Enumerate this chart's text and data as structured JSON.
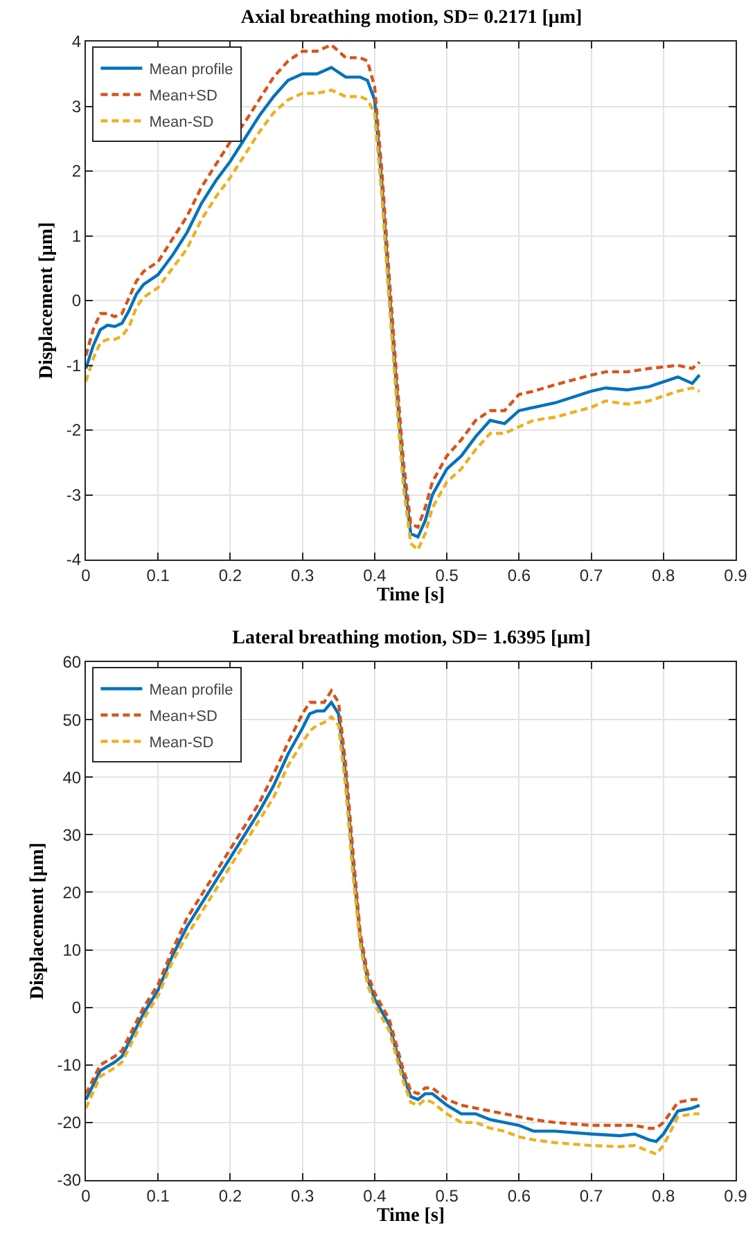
{
  "chart_data": [
    {
      "type": "line",
      "title": "Axial breathing motion, SD= 0.2171 [μm]",
      "xlabel": "Time [s]",
      "ylabel": "Displacement [μm]",
      "x": [
        0,
        0.01,
        0.02,
        0.03,
        0.04,
        0.05,
        0.06,
        0.07,
        0.08,
        0.1,
        0.12,
        0.14,
        0.16,
        0.18,
        0.2,
        0.22,
        0.24,
        0.26,
        0.28,
        0.3,
        0.32,
        0.34,
        0.36,
        0.38,
        0.39,
        0.4,
        0.41,
        0.42,
        0.43,
        0.44,
        0.45,
        0.46,
        0.47,
        0.48,
        0.5,
        0.52,
        0.54,
        0.56,
        0.58,
        0.6,
        0.62,
        0.65,
        0.7,
        0.72,
        0.75,
        0.78,
        0.82,
        0.84,
        0.85
      ],
      "series": [
        {
          "name": "Mean profile",
          "color": "#0072bd",
          "line_style": "solid",
          "values": [
            -1.05,
            -0.7,
            -0.45,
            -0.38,
            -0.4,
            -0.35,
            -0.15,
            0.1,
            0.25,
            0.4,
            0.7,
            1.05,
            1.5,
            1.85,
            2.15,
            2.5,
            2.85,
            3.15,
            3.4,
            3.5,
            3.5,
            3.6,
            3.45,
            3.45,
            3.4,
            3.1,
            1.8,
            0.2,
            -1.3,
            -2.7,
            -3.6,
            -3.65,
            -3.4,
            -3.0,
            -2.6,
            -2.4,
            -2.1,
            -1.85,
            -1.9,
            -1.7,
            -1.65,
            -1.58,
            -1.4,
            -1.35,
            -1.38,
            -1.33,
            -1.18,
            -1.28,
            -1.15
          ]
        },
        {
          "name": "Mean+SD",
          "color": "#d95319",
          "line_style": "dashed",
          "values": [
            -0.85,
            -0.45,
            -0.2,
            -0.2,
            -0.25,
            -0.2,
            0.05,
            0.3,
            0.45,
            0.6,
            0.95,
            1.3,
            1.75,
            2.1,
            2.45,
            2.75,
            3.1,
            3.45,
            3.7,
            3.85,
            3.85,
            3.95,
            3.75,
            3.75,
            3.7,
            3.3,
            2.0,
            0.4,
            -1.1,
            -2.5,
            -3.45,
            -3.5,
            -3.2,
            -2.8,
            -2.4,
            -2.15,
            -1.85,
            -1.7,
            -1.7,
            -1.45,
            -1.4,
            -1.3,
            -1.15,
            -1.1,
            -1.1,
            -1.05,
            -1.0,
            -1.05,
            -0.95
          ]
        },
        {
          "name": "Mean-SD",
          "color": "#edb120",
          "line_style": "dashed",
          "values": [
            -1.25,
            -0.9,
            -0.65,
            -0.6,
            -0.6,
            -0.55,
            -0.4,
            -0.1,
            0.05,
            0.2,
            0.5,
            0.8,
            1.25,
            1.6,
            1.9,
            2.25,
            2.6,
            2.9,
            3.1,
            3.2,
            3.2,
            3.25,
            3.15,
            3.15,
            3.1,
            2.9,
            1.6,
            0.0,
            -1.5,
            -2.9,
            -3.75,
            -3.85,
            -3.6,
            -3.2,
            -2.8,
            -2.6,
            -2.3,
            -2.05,
            -2.05,
            -1.95,
            -1.85,
            -1.8,
            -1.65,
            -1.55,
            -1.6,
            -1.55,
            -1.4,
            -1.35,
            -1.4
          ]
        }
      ],
      "xlim": [
        0,
        0.9
      ],
      "xticks": [
        0,
        0.1,
        0.2,
        0.3,
        0.4,
        0.5,
        0.6,
        0.7,
        0.8,
        0.9
      ],
      "ylim": [
        -4,
        4
      ],
      "yticks": [
        -4,
        -3,
        -2,
        -1,
        0,
        1,
        2,
        3,
        4
      ],
      "grid": true,
      "legend": "top left"
    },
    {
      "type": "line",
      "title": "Lateral breathing motion, SD= 1.6395 [μm]",
      "xlabel": "Time [s]",
      "ylabel": "Displacement [μm]",
      "x": [
        0,
        0.02,
        0.04,
        0.05,
        0.06,
        0.08,
        0.1,
        0.12,
        0.14,
        0.16,
        0.18,
        0.2,
        0.22,
        0.24,
        0.26,
        0.28,
        0.3,
        0.31,
        0.32,
        0.33,
        0.34,
        0.35,
        0.36,
        0.37,
        0.38,
        0.39,
        0.4,
        0.42,
        0.44,
        0.45,
        0.46,
        0.47,
        0.48,
        0.5,
        0.52,
        0.54,
        0.56,
        0.58,
        0.6,
        0.62,
        0.65,
        0.7,
        0.74,
        0.76,
        0.78,
        0.79,
        0.8,
        0.82,
        0.84,
        0.85
      ],
      "series": [
        {
          "name": "Mean profile",
          "color": "#0072bd",
          "line_style": "solid",
          "values": [
            -16,
            -11,
            -9.5,
            -8.5,
            -6,
            -1,
            3,
            9,
            14,
            18,
            22,
            26,
            30,
            34,
            38.5,
            44,
            48.5,
            51,
            51.5,
            51.5,
            53,
            51,
            40,
            25,
            12,
            5,
            1.5,
            -3,
            -12,
            -15.5,
            -16,
            -15,
            -15,
            -17,
            -18.5,
            -18.5,
            -19.5,
            -20,
            -20.5,
            -21.5,
            -21.5,
            -22,
            -22.3,
            -22,
            -23,
            -23.3,
            -22,
            -18,
            -17.5,
            -17
          ]
        },
        {
          "name": "Mean+SD",
          "color": "#d95319",
          "line_style": "dashed",
          "values": [
            -15,
            -10,
            -8.5,
            -7.5,
            -5,
            0,
            4,
            10,
            15.5,
            19.5,
            23.5,
            27.5,
            31.5,
            35.5,
            40.5,
            46,
            51,
            53,
            53,
            53,
            55,
            53,
            42,
            27,
            13,
            6,
            2.5,
            -2,
            -11,
            -14.5,
            -15,
            -14,
            -14,
            -16,
            -17,
            -17.5,
            -18,
            -18.5,
            -19,
            -19.5,
            -20,
            -20.5,
            -20.5,
            -20.5,
            -21,
            -21,
            -20,
            -16.5,
            -16,
            -16
          ]
        },
        {
          "name": "Mean-SD",
          "color": "#edb120",
          "line_style": "dashed",
          "values": [
            -17.5,
            -12,
            -10.5,
            -9.5,
            -7,
            -2,
            2,
            8,
            12.5,
            16.5,
            20.5,
            24.5,
            28.5,
            32.5,
            36.5,
            42,
            46,
            48,
            49,
            49.5,
            50.5,
            49,
            38,
            23,
            11,
            4,
            0.5,
            -4,
            -13,
            -16.5,
            -17,
            -16,
            -16.5,
            -18.5,
            -20,
            -20,
            -21,
            -21.5,
            -22.5,
            -23,
            -23.5,
            -24,
            -24.2,
            -24,
            -25,
            -25.5,
            -24,
            -19,
            -18.5,
            -18.5
          ]
        }
      ],
      "xlim": [
        0,
        0.9
      ],
      "xticks": [
        0,
        0.1,
        0.2,
        0.3,
        0.4,
        0.5,
        0.6,
        0.7,
        0.8,
        0.9
      ],
      "ylim": [
        -30,
        60
      ],
      "yticks": [
        -30,
        -20,
        -10,
        0,
        10,
        20,
        30,
        40,
        50,
        60
      ],
      "grid": true,
      "legend": "top left"
    }
  ]
}
